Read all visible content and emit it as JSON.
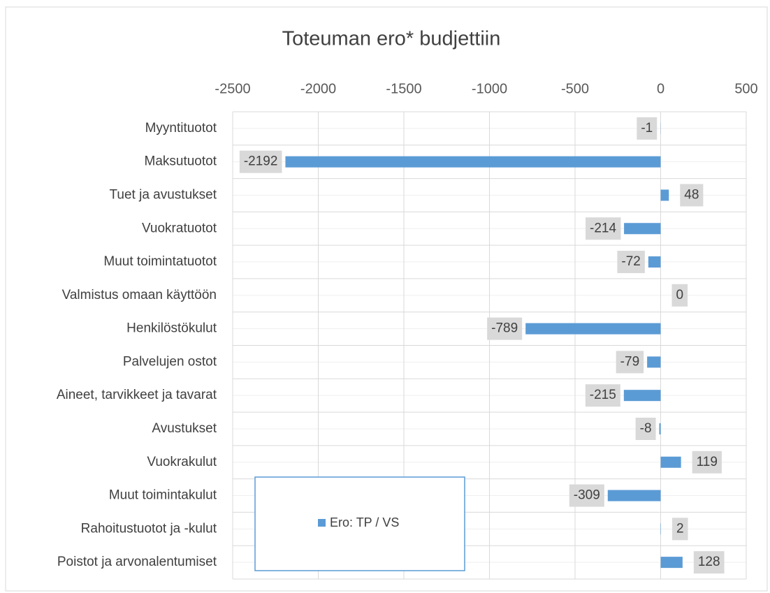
{
  "chart_data": {
    "type": "bar",
    "orientation": "horizontal",
    "title": "Toteuman ero* budjettiin",
    "categories": [
      "Myyntituotot",
      "Maksutuotot",
      "Tuet ja avustukset",
      "Vuokratuotot",
      "Muut toimintatuotot",
      "Valmistus omaan käyttöön",
      "Henkilöstökulut",
      "Palvelujen ostot",
      "Aineet, tarvikkeet ja tavarat",
      "Avustukset",
      "Vuokrakulut",
      "Muut toimintakulut",
      "Rahoitustuotot ja -kulut",
      "Poistot ja arvonalentumiset"
    ],
    "series": [
      {
        "name": "Ero: TP / VS",
        "color": "#5b9bd5",
        "values": [
          -1,
          -2192,
          48,
          -214,
          -72,
          0,
          -789,
          -79,
          -215,
          -8,
          119,
          -309,
          2,
          128
        ]
      }
    ],
    "xlim": [
      -2500,
      500
    ],
    "xticks": [
      -2500,
      -2000,
      -1500,
      -1000,
      -500,
      0,
      500
    ],
    "grid": true,
    "legend": "inside-bottom-left",
    "data_labels": true
  }
}
